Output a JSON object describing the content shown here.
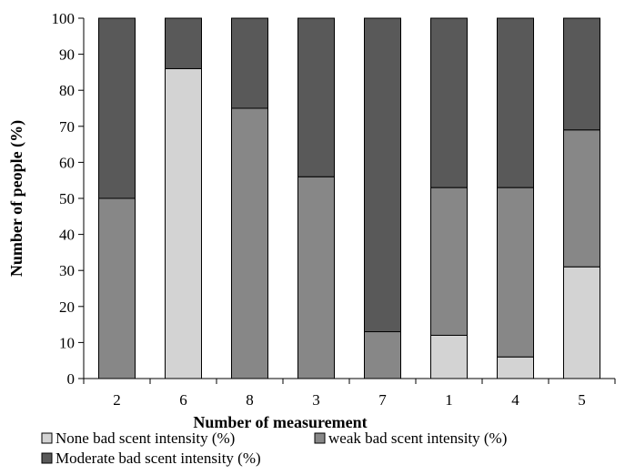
{
  "chart_data": {
    "type": "bar",
    "stacked": true,
    "title": "",
    "xlabel": "Number of measurement",
    "ylabel": "Number of people (%)",
    "ylim": [
      0,
      100
    ],
    "yticks": [
      0,
      10,
      20,
      30,
      40,
      50,
      60,
      70,
      80,
      90,
      100
    ],
    "categories": [
      "2",
      "6",
      "8",
      "3",
      "7",
      "1",
      "4",
      "5"
    ],
    "series": [
      {
        "name": "None bad scent intensity (%)",
        "color": "#d3d3d3",
        "values": [
          0,
          86,
          0,
          0,
          0,
          12,
          6,
          31
        ]
      },
      {
        "name": "weak bad scent intensity (%)",
        "color": "#878787",
        "values": [
          50,
          0,
          75,
          56,
          13,
          41,
          47,
          38
        ]
      },
      {
        "name": "Moderate bad scent intensity (%)",
        "color": "#595959",
        "values": [
          50,
          14,
          25,
          44,
          87,
          47,
          47,
          31
        ]
      }
    ],
    "grid": false,
    "legend_position": "bottom"
  }
}
